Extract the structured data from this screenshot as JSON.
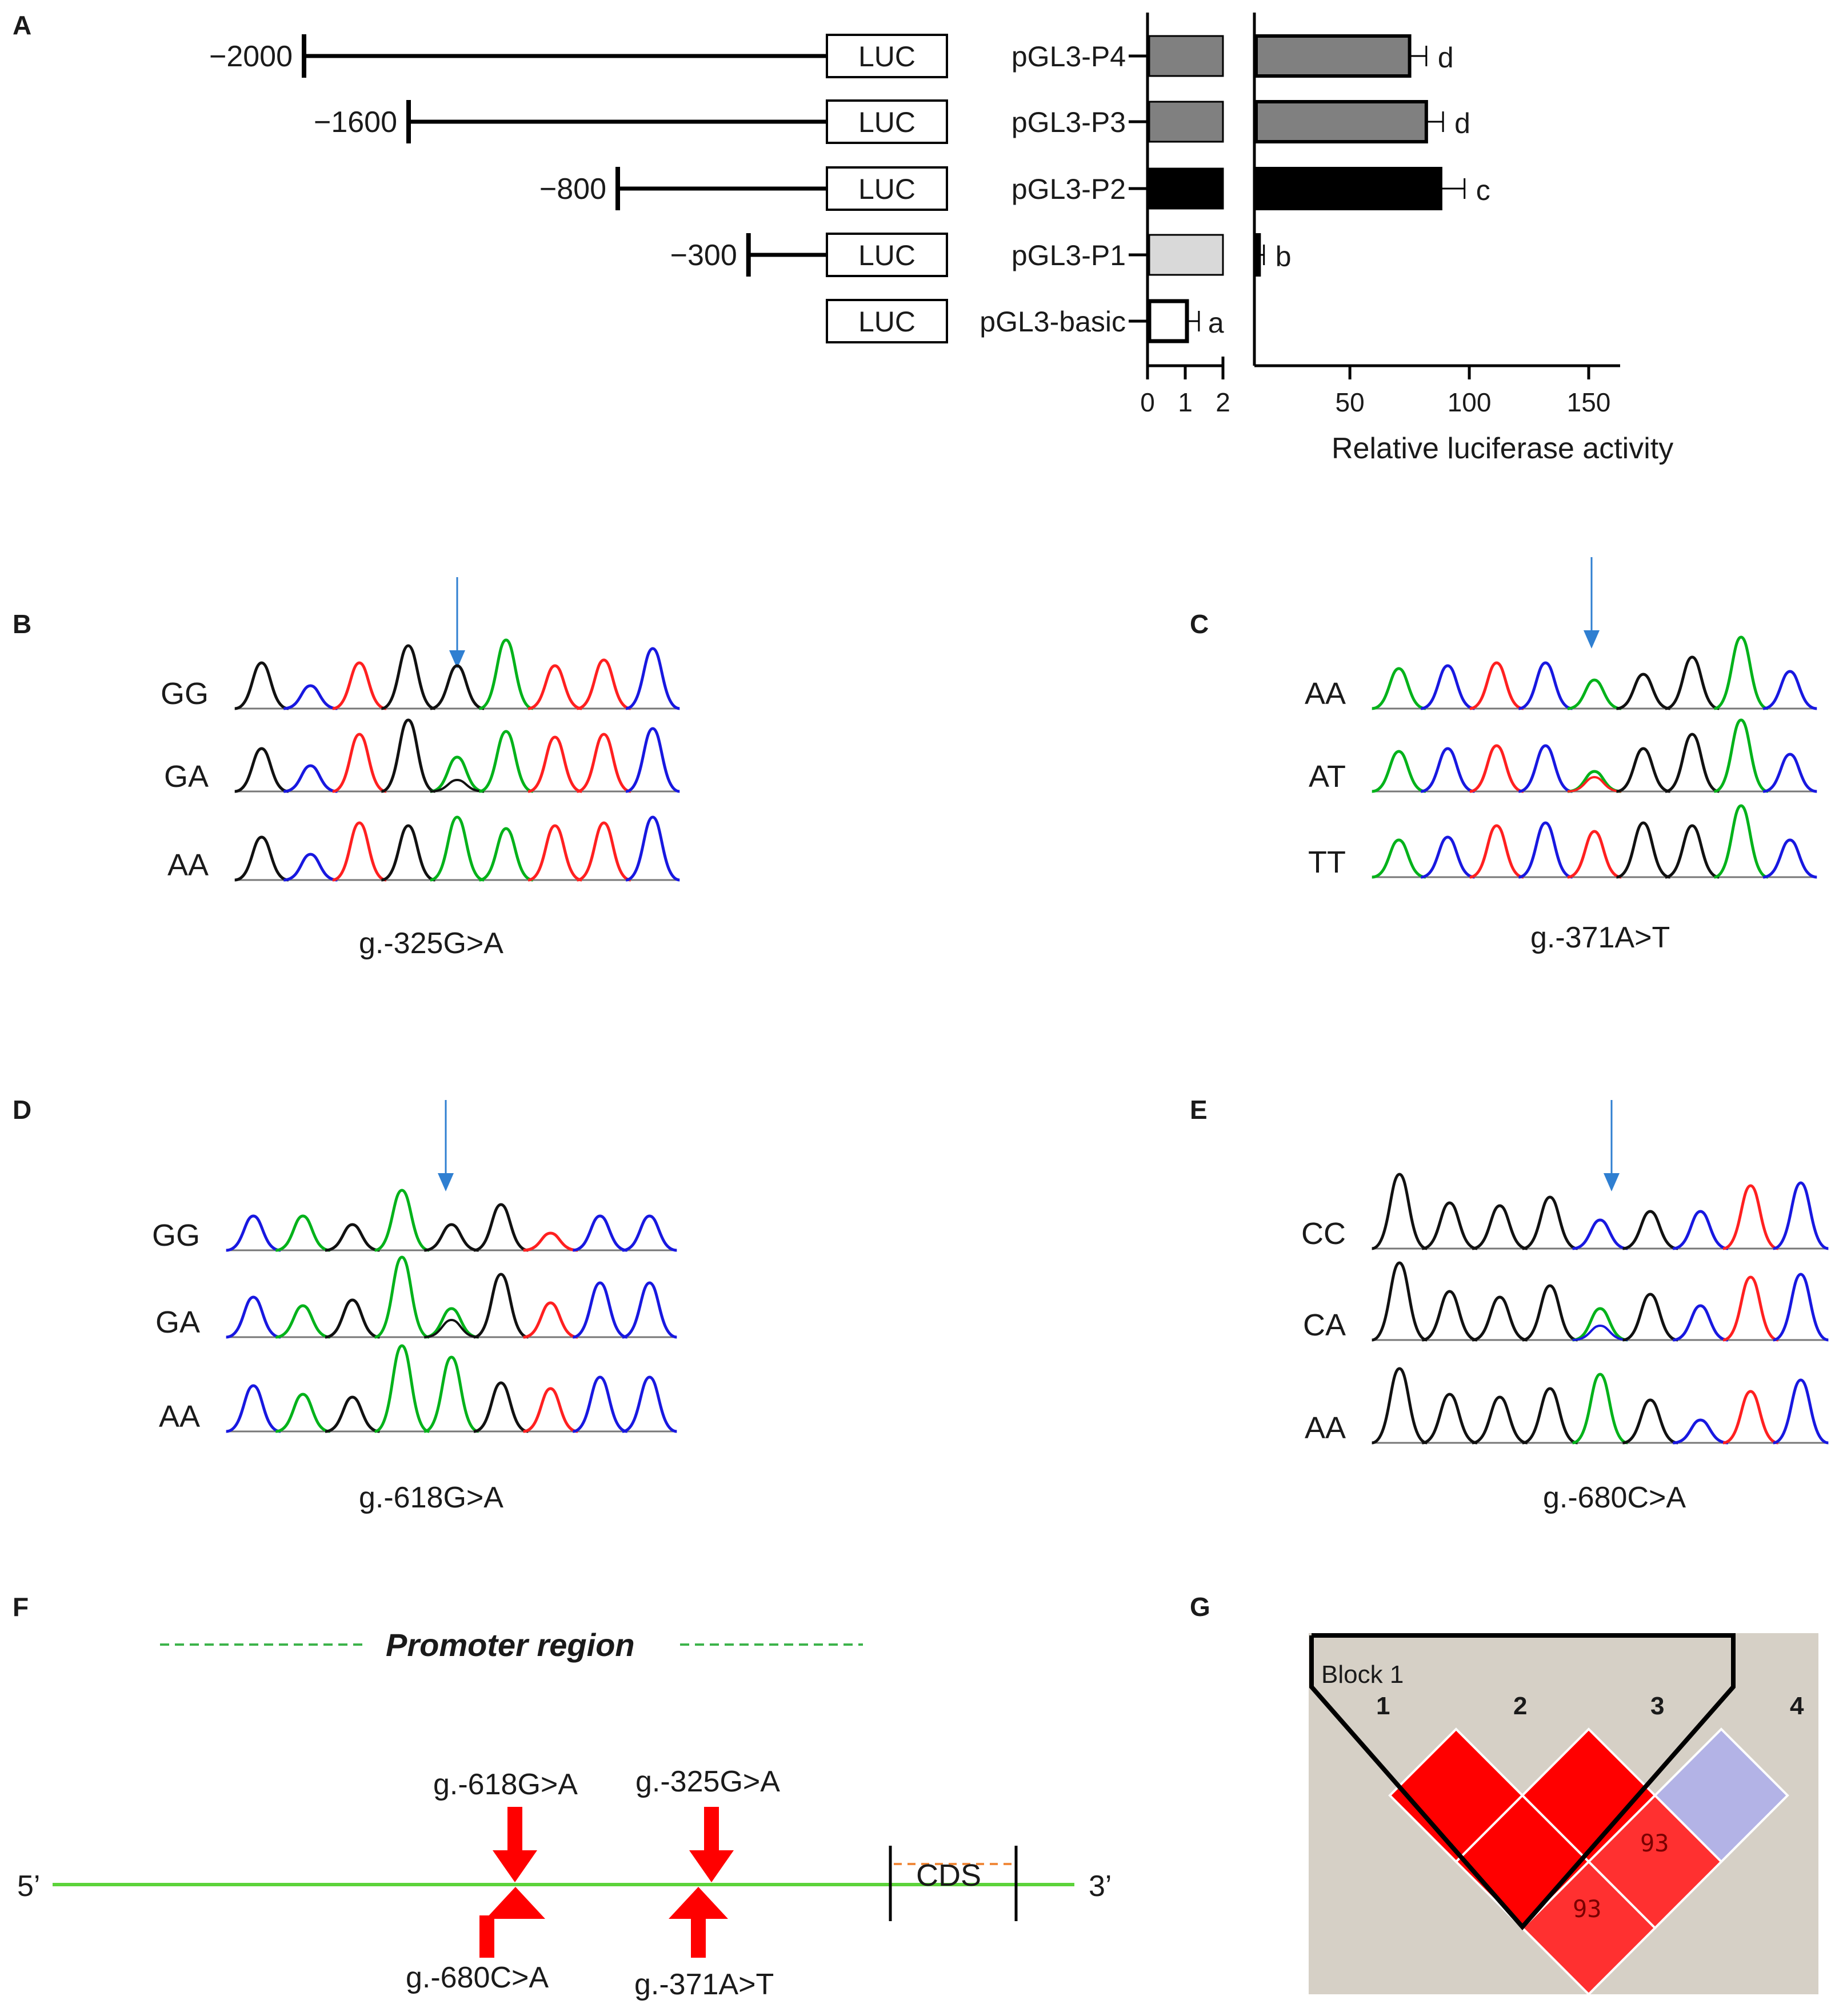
{
  "panels": {
    "a": "A",
    "b": "B",
    "c": "C",
    "d": "D",
    "e": "E",
    "f": "F",
    "g": "G"
  },
  "panel_a": {
    "luc_label": "LUC",
    "constructs": [
      {
        "name": "pGL3-P4",
        "position": "−2000",
        "start_bp": -2000,
        "letter": "d",
        "color": "#808080"
      },
      {
        "name": "pGL3-P3",
        "position": "−1600",
        "start_bp": -1600,
        "letter": "d",
        "color": "#808080"
      },
      {
        "name": "pGL3-P2",
        "position": "−800",
        "start_bp": -800,
        "letter": "c",
        "color": "#000000"
      },
      {
        "name": "pGL3-P1",
        "position": "−300",
        "start_bp": -300,
        "letter": "b",
        "color": "#d9d9d9"
      },
      {
        "name": "pGL3-basic",
        "position": "",
        "start_bp": 0,
        "letter": "a",
        "color": "#ffffff"
      }
    ]
  },
  "chart_data": {
    "type": "bar",
    "orientation": "horizontal",
    "categories": [
      "pGL3-P4",
      "pGL3-P3",
      "pGL3-P2",
      "pGL3-P1",
      "pGL3-basic"
    ],
    "values": [
      75,
      82,
      88,
      12,
      1
    ],
    "errors": [
      7,
      7,
      10,
      2,
      0.15
    ],
    "significance": [
      "d",
      "d",
      "c",
      "b",
      "a"
    ],
    "xlabel": "Relative luciferase activity",
    "axis_break": {
      "low_range": [
        0,
        2
      ],
      "high_range": [
        10,
        165
      ]
    },
    "xticks": [
      "0",
      "1",
      "2",
      "50",
      "100",
      "150"
    ],
    "xtick_values": [
      0,
      1,
      2,
      50,
      100,
      150
    ]
  },
  "chromatograms": {
    "b": {
      "caption": "g.-325G>A",
      "rows": [
        "GG",
        "GA",
        "AA"
      ]
    },
    "c": {
      "caption": "g.-371A>T",
      "rows": [
        "AA",
        "AT",
        "TT"
      ]
    },
    "d": {
      "caption": "g.-618G>A",
      "rows": [
        "GG",
        "GA",
        "AA"
      ]
    },
    "e": {
      "caption": "g.-680C>A",
      "rows": [
        "CC",
        "CA",
        "AA"
      ]
    }
  },
  "panel_f": {
    "promoter_label": "Promoter region",
    "five_prime": "5’",
    "three_prime": "3’",
    "cds": "CDS",
    "snps_top": [
      "g.-618G>A",
      "g.-325G>A"
    ],
    "snps_bottom": [
      "g.-680C>A",
      "g.-371A>T"
    ]
  },
  "panel_g": {
    "block_label": "Block 1",
    "markers": [
      "1",
      "2",
      "3",
      "4"
    ],
    "values": [
      "93",
      "93"
    ]
  }
}
